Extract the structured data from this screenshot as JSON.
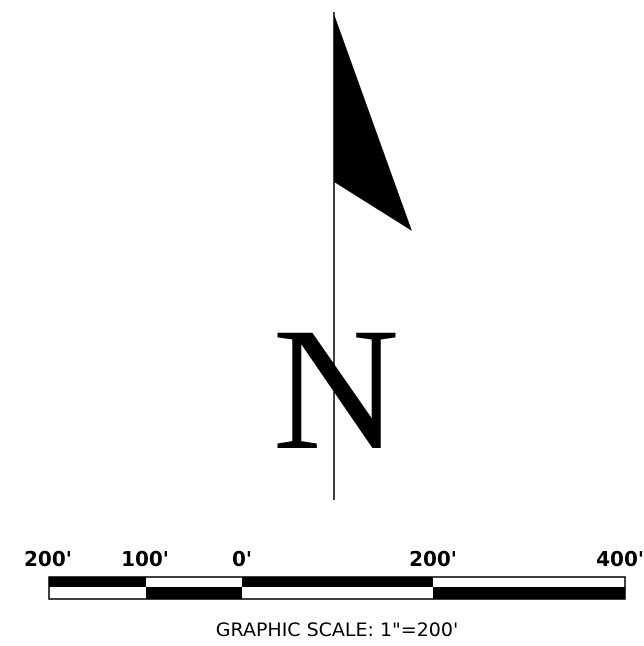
{
  "north_arrow": {
    "letter": "N",
    "icon": "north-arrow-flag-icon"
  },
  "graphic_scale": {
    "title": "GRAPHIC SCALE: 1\"=200'",
    "tick_labels": [
      "200'",
      "100'",
      "0'",
      "200'",
      "400'"
    ],
    "colors": {
      "fill": "#000000",
      "empty": "#ffffff"
    }
  }
}
